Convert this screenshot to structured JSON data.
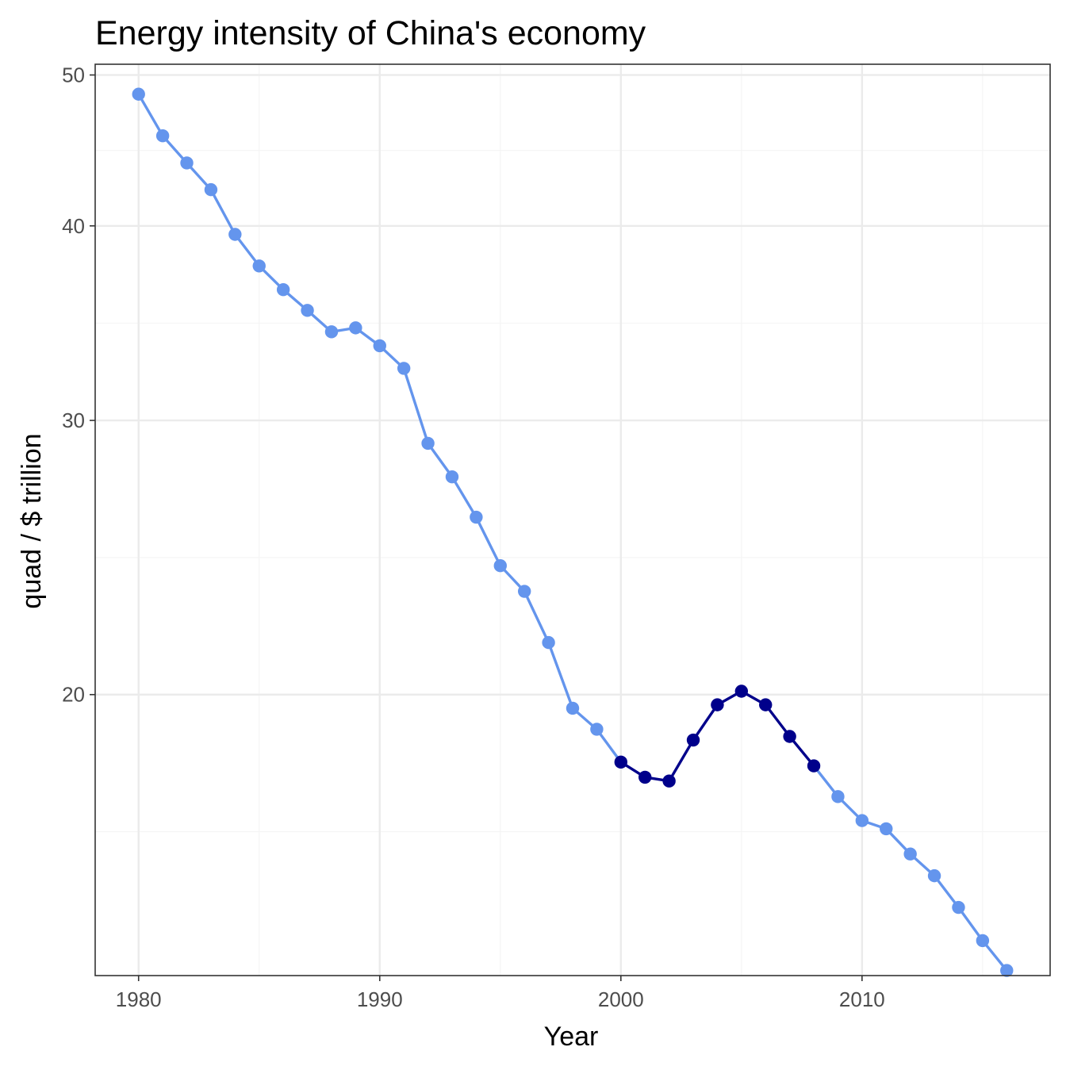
{
  "chart_data": {
    "type": "line",
    "title": "Energy intensity of China's economy",
    "xlabel": "Year",
    "ylabel": "quad / $ trillion",
    "x_ticks": [
      1980,
      1990,
      2000,
      2010
    ],
    "y_ticks": [
      20,
      30,
      40,
      50
    ],
    "xlim": [
      1978.2,
      2017.8
    ],
    "ylim": [
      13.2,
      50.8
    ],
    "y_scale": "log",
    "grid": true,
    "legend": "none",
    "colors": {
      "line_light": "#6495ED",
      "line_dark": "#00008B",
      "grid_major": "#EBEBEB",
      "grid_minor": "#F5F5F5",
      "panel_border": "#333333"
    },
    "x": [
      1980,
      1981,
      1982,
      1983,
      1984,
      1985,
      1986,
      1987,
      1988,
      1989,
      1990,
      1991,
      1992,
      1993,
      1994,
      1995,
      1996,
      1997,
      1998,
      1999,
      2000,
      2001,
      2002,
      2003,
      2004,
      2005,
      2006,
      2007,
      2008,
      2009,
      2010,
      2011,
      2012,
      2013,
      2014,
      2015,
      2016
    ],
    "y": [
      48.6,
      45.7,
      43.9,
      42.2,
      39.5,
      37.7,
      36.4,
      35.3,
      34.2,
      34.4,
      33.5,
      32.4,
      29.0,
      27.6,
      26.0,
      24.2,
      23.3,
      21.6,
      19.6,
      19.0,
      18.1,
      17.7,
      17.6,
      18.7,
      19.7,
      20.1,
      19.7,
      18.8,
      18.0,
      17.2,
      16.6,
      16.4,
      15.8,
      15.3,
      14.6,
      13.9,
      13.3
    ],
    "series": [
      {
        "highlight": false,
        "x_range": [
          1980,
          2000
        ],
        "color": "#6495ED"
      },
      {
        "highlight": true,
        "x_range": [
          2000,
          2008
        ],
        "color": "#00008B"
      },
      {
        "highlight": false,
        "x_range": [
          2008,
          2016
        ],
        "color": "#6495ED"
      }
    ]
  }
}
